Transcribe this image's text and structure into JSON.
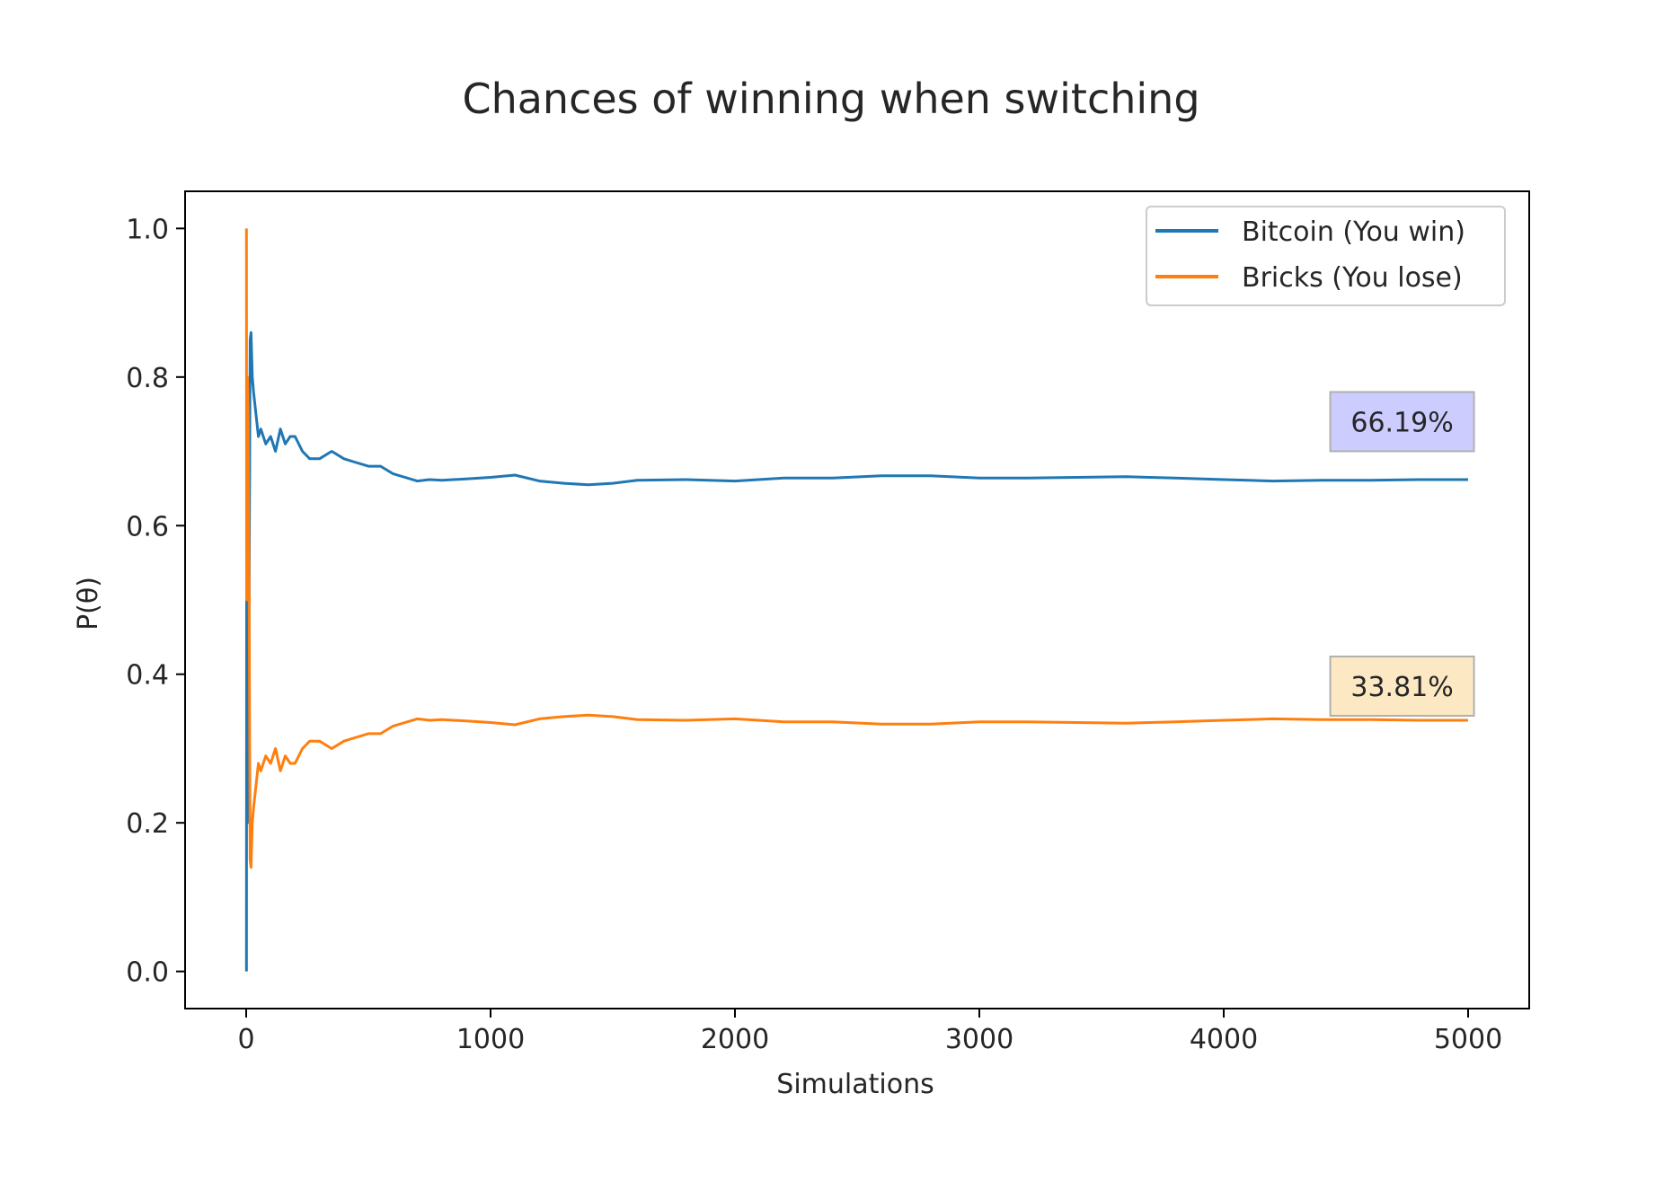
{
  "chart_data": {
    "type": "line",
    "title": "Chances of winning when switching",
    "xlabel": "Simulations",
    "ylabel": "P(θ)",
    "xlim": [
      -250,
      5250
    ],
    "ylim": [
      -0.05,
      1.05
    ],
    "x_ticks": [
      0,
      1000,
      2000,
      3000,
      4000,
      5000
    ],
    "y_ticks": [
      0.0,
      0.2,
      0.4,
      0.6,
      0.8,
      1.0
    ],
    "x_tick_labels": [
      "0",
      "1000",
      "2000",
      "3000",
      "4000",
      "5000"
    ],
    "y_tick_labels": [
      "0.0",
      "0.2",
      "0.4",
      "0.6",
      "0.8",
      "1.0"
    ],
    "grid": false,
    "legend_position": "top-right",
    "series": [
      {
        "name": "Bitcoin (You win)",
        "color": "#1f77b4",
        "x": [
          1,
          2,
          3,
          5,
          8,
          12,
          16,
          20,
          25,
          30,
          40,
          50,
          60,
          80,
          100,
          120,
          140,
          160,
          180,
          200,
          230,
          260,
          300,
          350,
          400,
          450,
          500,
          550,
          600,
          650,
          700,
          750,
          800,
          900,
          1000,
          1100,
          1200,
          1300,
          1400,
          1500,
          1600,
          1800,
          2000,
          2200,
          2400,
          2600,
          2800,
          3000,
          3200,
          3400,
          3600,
          3800,
          4000,
          4200,
          4400,
          4600,
          4800,
          5000
        ],
        "y": [
          0.0,
          0.5,
          0.333,
          0.2,
          0.25,
          0.5,
          0.85,
          0.86,
          0.8,
          0.78,
          0.75,
          0.72,
          0.73,
          0.71,
          0.72,
          0.7,
          0.73,
          0.71,
          0.72,
          0.72,
          0.7,
          0.69,
          0.69,
          0.7,
          0.69,
          0.685,
          0.68,
          0.68,
          0.67,
          0.665,
          0.66,
          0.662,
          0.661,
          0.663,
          0.665,
          0.668,
          0.66,
          0.657,
          0.655,
          0.657,
          0.661,
          0.662,
          0.66,
          0.664,
          0.664,
          0.667,
          0.667,
          0.664,
          0.664,
          0.665,
          0.666,
          0.664,
          0.662,
          0.66,
          0.661,
          0.661,
          0.662,
          0.662
        ]
      },
      {
        "name": "Bricks (You lose)",
        "color": "#ff7f0e",
        "x": [
          1,
          2,
          3,
          5,
          8,
          12,
          16,
          20,
          25,
          30,
          40,
          50,
          60,
          80,
          100,
          120,
          140,
          160,
          180,
          200,
          230,
          260,
          300,
          350,
          400,
          450,
          500,
          550,
          600,
          650,
          700,
          750,
          800,
          900,
          1000,
          1100,
          1200,
          1300,
          1400,
          1500,
          1600,
          1800,
          2000,
          2200,
          2400,
          2600,
          2800,
          3000,
          3200,
          3400,
          3600,
          3800,
          4000,
          4200,
          4400,
          4600,
          4800,
          5000
        ],
        "y": [
          1.0,
          0.5,
          0.667,
          0.8,
          0.75,
          0.5,
          0.15,
          0.14,
          0.2,
          0.22,
          0.25,
          0.28,
          0.27,
          0.29,
          0.28,
          0.3,
          0.27,
          0.29,
          0.28,
          0.28,
          0.3,
          0.31,
          0.31,
          0.3,
          0.31,
          0.315,
          0.32,
          0.32,
          0.33,
          0.335,
          0.34,
          0.338,
          0.339,
          0.337,
          0.335,
          0.332,
          0.34,
          0.343,
          0.345,
          0.343,
          0.339,
          0.338,
          0.34,
          0.336,
          0.336,
          0.333,
          0.333,
          0.336,
          0.336,
          0.335,
          0.334,
          0.336,
          0.338,
          0.34,
          0.339,
          0.339,
          0.338,
          0.338
        ]
      }
    ],
    "annotations": [
      {
        "text": "66.19%",
        "x": 4730,
        "y": 0.74,
        "facecolor": "#ccccff"
      },
      {
        "text": "33.81%",
        "x": 4730,
        "y": 0.384,
        "facecolor": "#fde8c4"
      }
    ]
  }
}
